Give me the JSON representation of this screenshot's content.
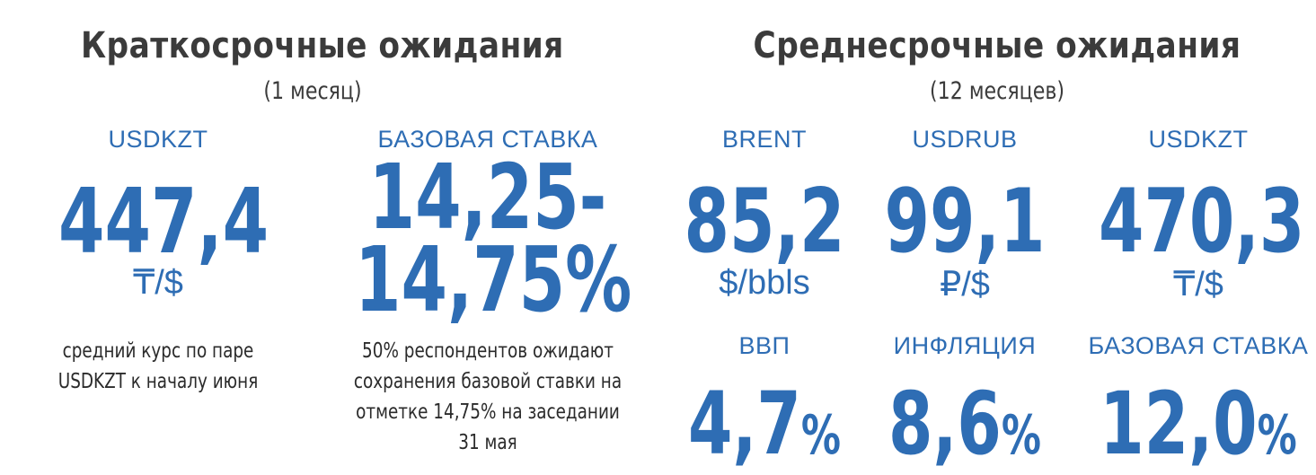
{
  "short_term": {
    "title": "Краткосрочные ожидания",
    "subtitle": "(1 месяц)",
    "usdkzt": {
      "label": "USDKZT",
      "value": "447,4",
      "unit": "₸/$",
      "note_line1": "средний курс по паре",
      "note_line2": "USDKZT к началу июня"
    },
    "base_rate": {
      "label": "БАЗОВАЯ СТАВКА",
      "value_line1": "14,25-",
      "value_line2": "14,75%",
      "note_line1": "50% респондентов ожидают",
      "note_line2": "сохранения базовой ставки на",
      "note_line3": "отметке 14,75% на заседании",
      "note_line4": "31 мая"
    }
  },
  "mid_term": {
    "title": "Среднесрочные ожидания",
    "subtitle": "(12 месяцев)",
    "brent": {
      "label": "BRENT",
      "value": "85,2",
      "unit": "$/bbls"
    },
    "usdrub": {
      "label": "USDRUB",
      "value": "99,1",
      "unit": "₽/$"
    },
    "usdkzt": {
      "label": "USDKZT",
      "value": "470,3",
      "unit": "₸/$"
    },
    "gdp": {
      "label": "ВВП",
      "value": "4,7",
      "suffix": "%"
    },
    "inflation": {
      "label": "ИНФЛЯЦИЯ",
      "value": "8,6",
      "suffix": "%"
    },
    "base_rate": {
      "label": "БАЗОВАЯ СТАВКА",
      "value": "12,0",
      "suffix": "%"
    }
  },
  "colors": {
    "accent": "#2e6db4",
    "heading": "#3b3b3b"
  }
}
